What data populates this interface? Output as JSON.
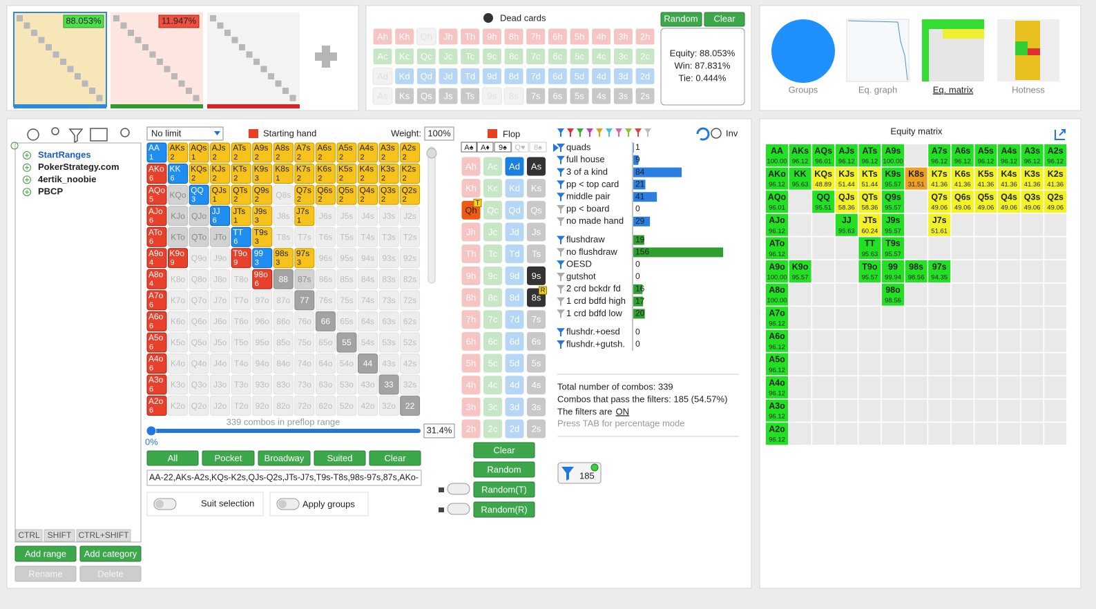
{
  "ranges_bar": {
    "range_1": "88.053%",
    "range_2": "11.947%"
  },
  "dead_cards": {
    "title": "Dead cards",
    "random": "Random",
    "clear": "Clear",
    "rows": [
      [
        "Ah",
        "Kh",
        "Qh",
        "Jh",
        "Th",
        "9h",
        "8h",
        "7h",
        "6h",
        "5h",
        "4h",
        "3h",
        "2h"
      ],
      [
        "Ac",
        "Kc",
        "Qc",
        "Jc",
        "Tc",
        "9c",
        "8c",
        "7c",
        "6c",
        "5c",
        "4c",
        "3c",
        "2c"
      ],
      [
        "Ad",
        "Kd",
        "Qd",
        "Jd",
        "Td",
        "9d",
        "8d",
        "7d",
        "6d",
        "5d",
        "4d",
        "3d",
        "2d"
      ],
      [
        "As",
        "Ks",
        "Qs",
        "Js",
        "Ts",
        "9s",
        "8s",
        "7s",
        "6s",
        "5s",
        "4s",
        "3s",
        "2s"
      ]
    ],
    "states": [
      "nnxnnnnnnnnnn",
      "nnnnnnnnnnnnn",
      "xnnnnnnnnnnnn",
      "xnnnnxxnnnnnn"
    ]
  },
  "equity": {
    "equity": "Equity: 88.053%",
    "win": "Win: 87.831%",
    "tie": "Tie: 0.444%"
  },
  "views": [
    "Groups",
    "Eq. graph",
    "Eq. matrix",
    "Hotness"
  ],
  "sidebar": {
    "tree": [
      "StartRanges",
      "PokerStrategy.com",
      "4ertik_noobie",
      "PBCP"
    ],
    "modifiers": [
      "CTRL",
      "SHIFT",
      "CTRL+SHIFT"
    ],
    "buttons": [
      "Add range",
      "Add category",
      "Rename",
      "Delete"
    ]
  },
  "hand_grid": {
    "game": "No limit",
    "title": "Starting hand",
    "weight_label": "Weight:",
    "weight": "100%",
    "labels": [
      [
        "AA",
        "AKs",
        "AQs",
        "AJs",
        "ATs",
        "A9s",
        "A8s",
        "A7s",
        "A6s",
        "A5s",
        "A4s",
        "A3s",
        "A2s"
      ],
      [
        "AKo",
        "KK",
        "KQs",
        "KJs",
        "KTs",
        "K9s",
        "K8s",
        "K7s",
        "K6s",
        "K5s",
        "K4s",
        "K3s",
        "K2s"
      ],
      [
        "AQo",
        "KQo",
        "QQ",
        "QJs",
        "QTs",
        "Q9s",
        "Q8s",
        "Q7s",
        "Q6s",
        "Q5s",
        "Q4s",
        "Q3s",
        "Q2s"
      ],
      [
        "AJo",
        "KJo",
        "QJo",
        "JJ",
        "JTs",
        "J9s",
        "J8s",
        "J7s",
        "J6s",
        "J5s",
        "J4s",
        "J3s",
        "J2s"
      ],
      [
        "ATo",
        "KTo",
        "QTo",
        "JTo",
        "TT",
        "T9s",
        "T8s",
        "T7s",
        "T6s",
        "T5s",
        "T4s",
        "T3s",
        "T2s"
      ],
      [
        "A9o",
        "K9o",
        "Q9o",
        "J9o",
        "T9o",
        "99",
        "98s",
        "97s",
        "96s",
        "95s",
        "94s",
        "93s",
        "92s"
      ],
      [
        "A8o",
        "K8o",
        "Q8o",
        "J8o",
        "T8o",
        "98o",
        "88",
        "87s",
        "86s",
        "85s",
        "84s",
        "83s",
        "82s"
      ],
      [
        "A7o",
        "K7o",
        "Q7o",
        "J7o",
        "T7o",
        "97o",
        "87o",
        "77",
        "76s",
        "75s",
        "74s",
        "73s",
        "72s"
      ],
      [
        "A6o",
        "K6o",
        "Q6o",
        "J6o",
        "T6o",
        "96o",
        "86o",
        "76o",
        "66",
        "65s",
        "64s",
        "63s",
        "62s"
      ],
      [
        "A5o",
        "K5o",
        "Q5o",
        "J5o",
        "T5o",
        "95o",
        "85o",
        "75o",
        "65o",
        "55",
        "54s",
        "53s",
        "52s"
      ],
      [
        "A4o",
        "K4o",
        "Q4o",
        "J4o",
        "T4o",
        "94o",
        "84o",
        "74o",
        "64o",
        "54o",
        "44",
        "43s",
        "42s"
      ],
      [
        "A3o",
        "K3o",
        "Q3o",
        "J3o",
        "T3o",
        "93o",
        "83o",
        "73o",
        "63o",
        "53o",
        "43o",
        "33",
        "32s"
      ],
      [
        "A2o",
        "K2o",
        "Q2o",
        "J2o",
        "T2o",
        "92o",
        "82o",
        "72o",
        "62o",
        "52o",
        "42o",
        "32o",
        "22"
      ]
    ],
    "combos": [
      [
        1,
        2,
        1,
        2,
        2,
        2,
        2,
        2,
        2,
        2,
        2,
        2,
        2
      ],
      [
        6,
        6,
        2,
        2,
        2,
        3,
        1,
        2,
        2,
        2,
        2,
        2,
        2
      ],
      [
        5,
        null,
        3,
        1,
        2,
        2,
        null,
        2,
        2,
        2,
        2,
        2,
        2
      ],
      [
        6,
        null,
        null,
        6,
        1,
        3,
        null,
        1,
        null,
        null,
        null,
        null,
        null
      ],
      [
        6,
        null,
        null,
        null,
        6,
        3,
        null,
        null,
        null,
        null,
        null,
        null,
        null
      ],
      [
        4,
        9,
        null,
        null,
        9,
        3,
        3,
        3,
        null,
        null,
        null,
        null,
        null
      ],
      [
        4,
        null,
        null,
        null,
        null,
        6,
        null,
        null,
        null,
        null,
        null,
        null,
        null
      ],
      [
        6,
        null,
        null,
        null,
        null,
        null,
        null,
        null,
        null,
        null,
        null,
        null,
        null
      ],
      [
        6,
        null,
        null,
        null,
        null,
        null,
        null,
        null,
        null,
        null,
        null,
        null,
        null
      ],
      [
        6,
        null,
        null,
        null,
        null,
        null,
        null,
        null,
        null,
        null,
        null,
        null,
        null
      ],
      [
        6,
        null,
        null,
        null,
        null,
        null,
        null,
        null,
        null,
        null,
        null,
        null,
        null
      ],
      [
        6,
        null,
        null,
        null,
        null,
        null,
        null,
        null,
        null,
        null,
        null,
        null,
        null
      ],
      [
        6,
        null,
        null,
        null,
        null,
        null,
        null,
        null,
        null,
        null,
        null,
        null,
        null
      ]
    ],
    "states": [
      "pssssssssssss",
      "opsssssssssss",
      "ogpsssnssssss",
      "oggpssnsnnnnn",
      "ogggpsnnnnnnn",
      "oonnopssnnnnn",
      "onnnnodgnnnnn",
      "onnnnnndnnnnn",
      "onnnnnnndnnnn",
      "onnnnnnnndnnn",
      "onnnnnnnnndnn",
      "onnnnnnnnnndn",
      "onnnnnnnnnnnd"
    ],
    "summary": "339 combos in preflop range",
    "slider_min": "0%",
    "slider_value": "31.4%",
    "buttons": [
      "All",
      "Pocket",
      "Broadway",
      "Suited",
      "Clear"
    ],
    "range_text": "AA-22,AKs-A2s,KQs-K2s,QJs-Q2s,JTs-J7s,T9s-T8s,98s-97s,87s,AKo-",
    "suit_selection": "Suit selection",
    "apply_groups": "Apply groups"
  },
  "flop": {
    "title": "Flop",
    "board": [
      "A♠",
      "A♦",
      "9♠",
      "Q♥",
      "8♠"
    ],
    "board_states": "aaaff",
    "states": [
      "nnonnnnnnnnnn",
      "nnnnnnnnnnnnn",
      "bnnnnnnnnnnnn",
      "knnnnkknnnnnn"
    ],
    "tags": [
      [
        null,
        null,
        "T",
        null,
        null,
        null,
        null,
        null,
        null,
        null,
        null,
        null,
        null
      ],
      [
        null,
        null,
        null,
        null,
        null,
        null,
        null,
        null,
        null,
        null,
        null,
        null,
        null
      ],
      [
        null,
        null,
        null,
        null,
        null,
        null,
        null,
        null,
        null,
        null,
        null,
        null,
        null
      ],
      [
        null,
        null,
        null,
        null,
        null,
        null,
        "R",
        null,
        null,
        null,
        null,
        null,
        null
      ]
    ],
    "buttons": [
      "Clear",
      "Random",
      "Random(T)",
      "Random(R)"
    ]
  },
  "filters": {
    "inv": "Inv",
    "groups": [
      {
        "color": "#2a7fe0",
        "items": [
          {
            "name": "quads",
            "count": 1,
            "active": true
          },
          {
            "name": "full house",
            "count": 9,
            "active": true
          },
          {
            "name": "3 of a kind",
            "count": 84,
            "active": true
          },
          {
            "name": "pp < top card",
            "count": 21,
            "active": true
          },
          {
            "name": "middle pair",
            "count": 41,
            "active": true
          },
          {
            "name": "pp < board",
            "count": 0,
            "active": false
          },
          {
            "name": "no made hand",
            "count": 29,
            "active": false
          }
        ]
      },
      {
        "color": "#2fa02f",
        "items": [
          {
            "name": "flushdraw",
            "count": 19,
            "active": true
          },
          {
            "name": "no flushdraw",
            "count": 156,
            "active": false
          },
          {
            "name": "OESD",
            "count": 0,
            "active": true
          },
          {
            "name": "gutshot",
            "count": 0,
            "active": false
          },
          {
            "name": "2 crd bckdr fd",
            "count": 16,
            "active": false
          },
          {
            "name": "1 crd bdfd high",
            "count": 17,
            "active": false
          },
          {
            "name": "1 crd bdfd low",
            "count": 20,
            "active": false
          }
        ]
      },
      {
        "color": "#2a7fe0",
        "items": [
          {
            "name": "flushdr.+oesd",
            "count": 0,
            "active": true
          },
          {
            "name": "flushdr.+gutsh.",
            "count": 0,
            "active": true
          }
        ]
      }
    ],
    "total": "Total number of combos: 339",
    "passing": "Combos that pass the filters: 185 (54.57%)",
    "status_label": "The filters are",
    "status": "ON",
    "hint": "Press TAB for percentage mode",
    "button": "185"
  },
  "equity_matrix": {
    "title": "Equity matrix",
    "hands": [
      [
        "AA",
        "AKs",
        "AQs",
        "AJs",
        "ATs",
        "A9s",
        null,
        "A7s",
        "A6s",
        "A5s",
        "A4s",
        "A3s",
        "A2s"
      ],
      [
        "AKo",
        "KK",
        "KQs",
        "KJs",
        "KTs",
        "K9s",
        "K8s",
        "K7s",
        "K6s",
        "K5s",
        "K4s",
        "K3s",
        "K2s"
      ],
      [
        "AQo",
        null,
        "QQ",
        "QJs",
        "QTs",
        "Q9s",
        null,
        "Q7s",
        "Q6s",
        "Q5s",
        "Q4s",
        "Q3s",
        "Q2s"
      ],
      [
        "AJo",
        null,
        null,
        "JJ",
        "JTs",
        "J9s",
        null,
        "J7s",
        null,
        null,
        null,
        null,
        null
      ],
      [
        "ATo",
        null,
        null,
        null,
        "TT",
        "T9s",
        null,
        null,
        null,
        null,
        null,
        null,
        null
      ],
      [
        "A9o",
        "K9o",
        null,
        null,
        "T9o",
        "99",
        "98s",
        "97s",
        null,
        null,
        null,
        null,
        null
      ],
      [
        "A8o",
        null,
        null,
        null,
        null,
        "98o",
        null,
        null,
        null,
        null,
        null,
        null,
        null
      ],
      [
        "A7o",
        null,
        null,
        null,
        null,
        null,
        null,
        null,
        null,
        null,
        null,
        null,
        null
      ],
      [
        "A6o",
        null,
        null,
        null,
        null,
        null,
        null,
        null,
        null,
        null,
        null,
        null,
        null
      ],
      [
        "A5o",
        null,
        null,
        null,
        null,
        null,
        null,
        null,
        null,
        null,
        null,
        null,
        null
      ],
      [
        "A4o",
        null,
        null,
        null,
        null,
        null,
        null,
        null,
        null,
        null,
        null,
        null,
        null
      ],
      [
        "A3o",
        null,
        null,
        null,
        null,
        null,
        null,
        null,
        null,
        null,
        null,
        null,
        null
      ],
      [
        "A2o",
        null,
        null,
        null,
        null,
        null,
        null,
        null,
        null,
        null,
        null,
        null,
        null
      ]
    ],
    "equities": [
      [
        "100.00",
        "96.12",
        "96.01",
        "96.12",
        "96.12",
        "100.00",
        null,
        "96.12",
        "96.12",
        "96.12",
        "96.12",
        "96.12",
        "96.12"
      ],
      [
        "96.12",
        "95.63",
        "48.89",
        "51.44",
        "51.44",
        "95.57",
        "31.51",
        "41.36",
        "41.36",
        "41.36",
        "41.36",
        "41.36",
        "41.36"
      ],
      [
        "96.01",
        null,
        "95.51",
        "58.36",
        "58.36",
        "95.57",
        null,
        "49.06",
        "49.06",
        "49.06",
        "49.06",
        "49.06",
        "49.06"
      ],
      [
        "96.12",
        null,
        null,
        "95.63",
        "60.24",
        "95.57",
        null,
        "51.61",
        null,
        null,
        null,
        null,
        null
      ],
      [
        "96.12",
        null,
        null,
        null,
        "95.63",
        "95.57",
        null,
        null,
        null,
        null,
        null,
        null,
        null
      ],
      [
        "100.00",
        "95.57",
        null,
        null,
        "95.57",
        "99.94",
        "98.56",
        "94.35",
        null,
        null,
        null,
        null,
        null
      ],
      [
        "100.00",
        null,
        null,
        null,
        null,
        "98.56",
        null,
        null,
        null,
        null,
        null,
        null,
        null
      ],
      [
        "96.12",
        null,
        null,
        null,
        null,
        null,
        null,
        null,
        null,
        null,
        null,
        null,
        null
      ],
      [
        "96.12",
        null,
        null,
        null,
        null,
        null,
        null,
        null,
        null,
        null,
        null,
        null,
        null
      ],
      [
        "96.12",
        null,
        null,
        null,
        null,
        null,
        null,
        null,
        null,
        null,
        null,
        null,
        null
      ],
      [
        "96.12",
        null,
        null,
        null,
        null,
        null,
        null,
        null,
        null,
        null,
        null,
        null,
        null
      ],
      [
        "96.12",
        null,
        null,
        null,
        null,
        null,
        null,
        null,
        null,
        null,
        null,
        null,
        null
      ],
      [
        "96.12",
        null,
        null,
        null,
        null,
        null,
        null,
        null,
        null,
        null,
        null,
        null,
        null
      ]
    ]
  }
}
